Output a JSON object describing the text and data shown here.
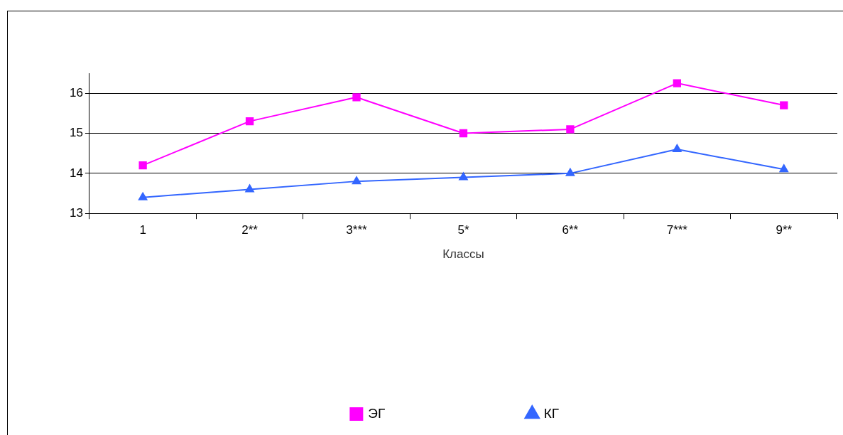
{
  "chart_data": {
    "type": "line",
    "xlabel": "Классы",
    "categories": [
      "1",
      "2**",
      "3***",
      "5*",
      "6**",
      "7***",
      "9**"
    ],
    "series": [
      {
        "name": "ЭГ",
        "color": "#ff00ff",
        "marker": "square",
        "values": [
          14.2,
          15.3,
          15.9,
          15.0,
          15.1,
          16.25,
          15.7
        ]
      },
      {
        "name": "КГ",
        "color": "#3366ff",
        "marker": "triangle",
        "values": [
          13.4,
          13.6,
          13.8,
          13.9,
          14.0,
          14.6,
          14.1
        ]
      }
    ],
    "ylim": [
      13,
      16.5
    ],
    "yticks": [
      13,
      14,
      15,
      16
    ],
    "grid": "y",
    "legend": "bottom",
    "line_style": "solid"
  }
}
